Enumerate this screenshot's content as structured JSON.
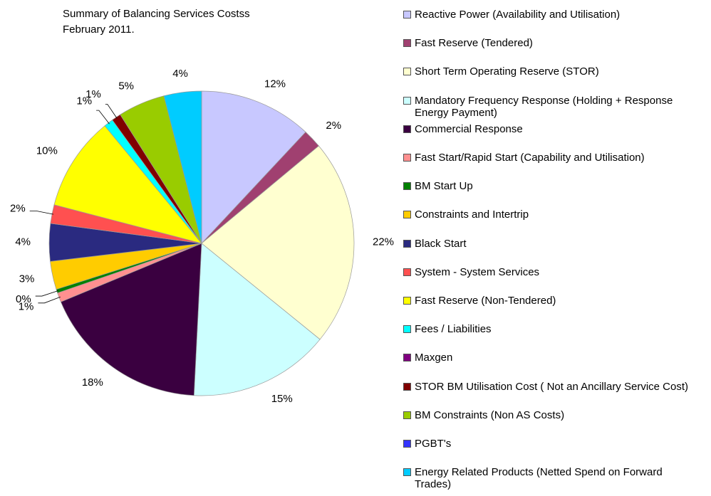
{
  "chart_data": {
    "type": "pie",
    "title": "Summary of Balancing Services Costss",
    "subtitle": "February 2011.",
    "categories": [
      "Reactive Power (Availability and Utilisation)",
      "Fast Reserve (Tendered)",
      "Short Term Operating Reserve (STOR)",
      "Mandatory Frequency Response (Holding + Response Energy Payment)",
      "Commercial Response",
      "Fast Start/Rapid Start (Capability and Utilisation)",
      "BM Start Up",
      "Constraints and Intertrip",
      "Black Start",
      "System - System Services",
      "Fast Reserve (Non-Tendered)",
      "Fees / Liabilities",
      "Maxgen",
      "STOR BM Utilisation Cost ( Not an Ancillary Service Cost)",
      "BM Constraints (Non AS Costs)",
      "PGBT's",
      "Energy Related Products (Netted Spend on Forward Trades)"
    ],
    "values": [
      12,
      2,
      22,
      15,
      18,
      1,
      0.4,
      3,
      4,
      2,
      10,
      1,
      0,
      1,
      5,
      0,
      4
    ],
    "value_labels": [
      "12%",
      "2%",
      "22%",
      "15%",
      "18%",
      "1%",
      "0%",
      "3%",
      "4%",
      "2%",
      "10%",
      "1%",
      null,
      "1%",
      "5%",
      null,
      "4%"
    ],
    "colors": [
      "#c8c8ff",
      "#a04070",
      "#ffffd0",
      "#ccffff",
      "#3a0040",
      "#ff9090",
      "#008000",
      "#ffcc00",
      "#2a2a80",
      "#ff5050",
      "#ffff00",
      "#00ffff",
      "#800080",
      "#800000",
      "#99cc00",
      "#3333ff",
      "#00ccff"
    ],
    "legend": "right"
  }
}
